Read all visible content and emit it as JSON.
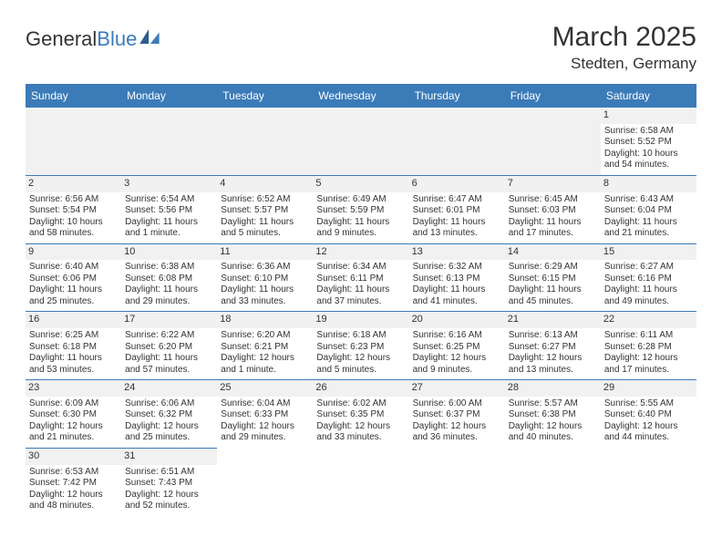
{
  "logo": {
    "text1": "General",
    "text2": "Blue"
  },
  "title": "March 2025",
  "location": "Stedten, Germany",
  "colors": {
    "header_bg": "#3b7bb8",
    "header_text": "#ffffff",
    "row_border": "#3b7bb8",
    "daynum_bg": "#f1f1f1",
    "text": "#333333",
    "page_bg": "#ffffff"
  },
  "weekdays": [
    "Sunday",
    "Monday",
    "Tuesday",
    "Wednesday",
    "Thursday",
    "Friday",
    "Saturday"
  ],
  "weeks": [
    [
      null,
      null,
      null,
      null,
      null,
      null,
      {
        "n": "1",
        "sr": "Sunrise: 6:58 AM",
        "ss": "Sunset: 5:52 PM",
        "d1": "Daylight: 10 hours",
        "d2": "and 54 minutes."
      }
    ],
    [
      {
        "n": "2",
        "sr": "Sunrise: 6:56 AM",
        "ss": "Sunset: 5:54 PM",
        "d1": "Daylight: 10 hours",
        "d2": "and 58 minutes."
      },
      {
        "n": "3",
        "sr": "Sunrise: 6:54 AM",
        "ss": "Sunset: 5:56 PM",
        "d1": "Daylight: 11 hours",
        "d2": "and 1 minute."
      },
      {
        "n": "4",
        "sr": "Sunrise: 6:52 AM",
        "ss": "Sunset: 5:57 PM",
        "d1": "Daylight: 11 hours",
        "d2": "and 5 minutes."
      },
      {
        "n": "5",
        "sr": "Sunrise: 6:49 AM",
        "ss": "Sunset: 5:59 PM",
        "d1": "Daylight: 11 hours",
        "d2": "and 9 minutes."
      },
      {
        "n": "6",
        "sr": "Sunrise: 6:47 AM",
        "ss": "Sunset: 6:01 PM",
        "d1": "Daylight: 11 hours",
        "d2": "and 13 minutes."
      },
      {
        "n": "7",
        "sr": "Sunrise: 6:45 AM",
        "ss": "Sunset: 6:03 PM",
        "d1": "Daylight: 11 hours",
        "d2": "and 17 minutes."
      },
      {
        "n": "8",
        "sr": "Sunrise: 6:43 AM",
        "ss": "Sunset: 6:04 PM",
        "d1": "Daylight: 11 hours",
        "d2": "and 21 minutes."
      }
    ],
    [
      {
        "n": "9",
        "sr": "Sunrise: 6:40 AM",
        "ss": "Sunset: 6:06 PM",
        "d1": "Daylight: 11 hours",
        "d2": "and 25 minutes."
      },
      {
        "n": "10",
        "sr": "Sunrise: 6:38 AM",
        "ss": "Sunset: 6:08 PM",
        "d1": "Daylight: 11 hours",
        "d2": "and 29 minutes."
      },
      {
        "n": "11",
        "sr": "Sunrise: 6:36 AM",
        "ss": "Sunset: 6:10 PM",
        "d1": "Daylight: 11 hours",
        "d2": "and 33 minutes."
      },
      {
        "n": "12",
        "sr": "Sunrise: 6:34 AM",
        "ss": "Sunset: 6:11 PM",
        "d1": "Daylight: 11 hours",
        "d2": "and 37 minutes."
      },
      {
        "n": "13",
        "sr": "Sunrise: 6:32 AM",
        "ss": "Sunset: 6:13 PM",
        "d1": "Daylight: 11 hours",
        "d2": "and 41 minutes."
      },
      {
        "n": "14",
        "sr": "Sunrise: 6:29 AM",
        "ss": "Sunset: 6:15 PM",
        "d1": "Daylight: 11 hours",
        "d2": "and 45 minutes."
      },
      {
        "n": "15",
        "sr": "Sunrise: 6:27 AM",
        "ss": "Sunset: 6:16 PM",
        "d1": "Daylight: 11 hours",
        "d2": "and 49 minutes."
      }
    ],
    [
      {
        "n": "16",
        "sr": "Sunrise: 6:25 AM",
        "ss": "Sunset: 6:18 PM",
        "d1": "Daylight: 11 hours",
        "d2": "and 53 minutes."
      },
      {
        "n": "17",
        "sr": "Sunrise: 6:22 AM",
        "ss": "Sunset: 6:20 PM",
        "d1": "Daylight: 11 hours",
        "d2": "and 57 minutes."
      },
      {
        "n": "18",
        "sr": "Sunrise: 6:20 AM",
        "ss": "Sunset: 6:21 PM",
        "d1": "Daylight: 12 hours",
        "d2": "and 1 minute."
      },
      {
        "n": "19",
        "sr": "Sunrise: 6:18 AM",
        "ss": "Sunset: 6:23 PM",
        "d1": "Daylight: 12 hours",
        "d2": "and 5 minutes."
      },
      {
        "n": "20",
        "sr": "Sunrise: 6:16 AM",
        "ss": "Sunset: 6:25 PM",
        "d1": "Daylight: 12 hours",
        "d2": "and 9 minutes."
      },
      {
        "n": "21",
        "sr": "Sunrise: 6:13 AM",
        "ss": "Sunset: 6:27 PM",
        "d1": "Daylight: 12 hours",
        "d2": "and 13 minutes."
      },
      {
        "n": "22",
        "sr": "Sunrise: 6:11 AM",
        "ss": "Sunset: 6:28 PM",
        "d1": "Daylight: 12 hours",
        "d2": "and 17 minutes."
      }
    ],
    [
      {
        "n": "23",
        "sr": "Sunrise: 6:09 AM",
        "ss": "Sunset: 6:30 PM",
        "d1": "Daylight: 12 hours",
        "d2": "and 21 minutes."
      },
      {
        "n": "24",
        "sr": "Sunrise: 6:06 AM",
        "ss": "Sunset: 6:32 PM",
        "d1": "Daylight: 12 hours",
        "d2": "and 25 minutes."
      },
      {
        "n": "25",
        "sr": "Sunrise: 6:04 AM",
        "ss": "Sunset: 6:33 PM",
        "d1": "Daylight: 12 hours",
        "d2": "and 29 minutes."
      },
      {
        "n": "26",
        "sr": "Sunrise: 6:02 AM",
        "ss": "Sunset: 6:35 PM",
        "d1": "Daylight: 12 hours",
        "d2": "and 33 minutes."
      },
      {
        "n": "27",
        "sr": "Sunrise: 6:00 AM",
        "ss": "Sunset: 6:37 PM",
        "d1": "Daylight: 12 hours",
        "d2": "and 36 minutes."
      },
      {
        "n": "28",
        "sr": "Sunrise: 5:57 AM",
        "ss": "Sunset: 6:38 PM",
        "d1": "Daylight: 12 hours",
        "d2": "and 40 minutes."
      },
      {
        "n": "29",
        "sr": "Sunrise: 5:55 AM",
        "ss": "Sunset: 6:40 PM",
        "d1": "Daylight: 12 hours",
        "d2": "and 44 minutes."
      }
    ],
    [
      {
        "n": "30",
        "sr": "Sunrise: 6:53 AM",
        "ss": "Sunset: 7:42 PM",
        "d1": "Daylight: 12 hours",
        "d2": "and 48 minutes."
      },
      {
        "n": "31",
        "sr": "Sunrise: 6:51 AM",
        "ss": "Sunset: 7:43 PM",
        "d1": "Daylight: 12 hours",
        "d2": "and 52 minutes."
      },
      null,
      null,
      null,
      null,
      null
    ]
  ]
}
